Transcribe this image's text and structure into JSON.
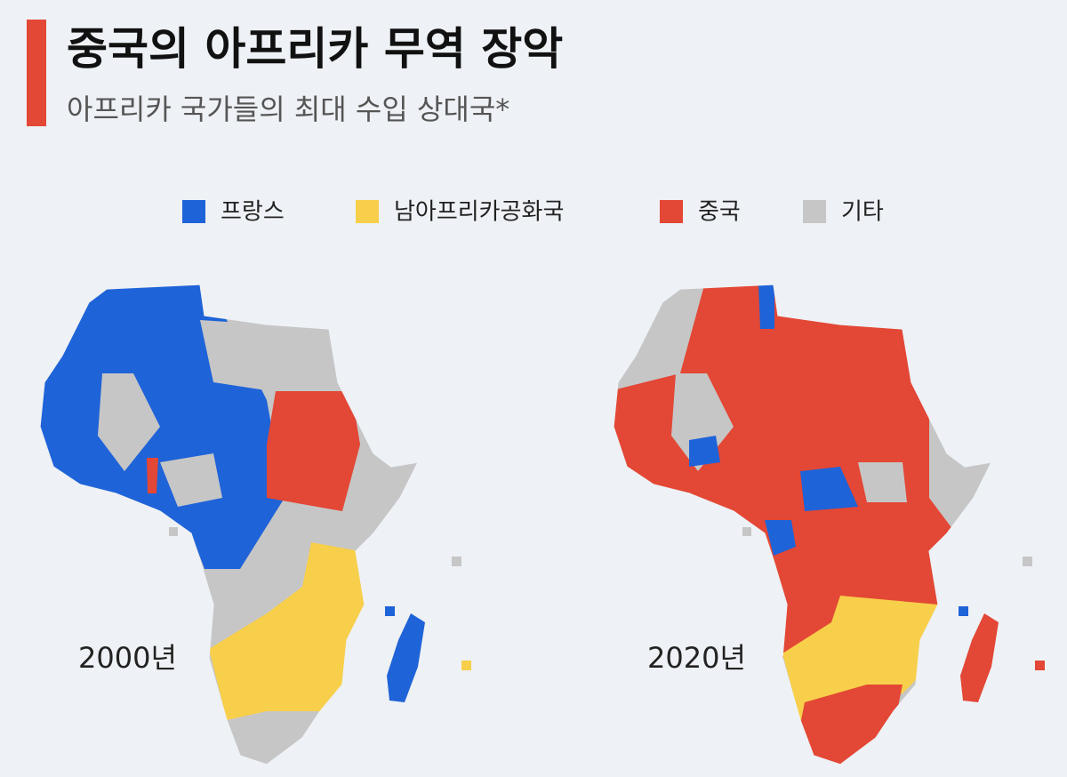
{
  "header": {
    "title": "중국의 아프리카 무역 장악",
    "subtitle": "아프리카 국가들의 최대 수입 상대국*"
  },
  "legend": [
    {
      "label": "프랑스"
    },
    {
      "label": "남아프리카공화국"
    },
    {
      "label": "중국"
    },
    {
      "label": "기타"
    }
  ],
  "maps": [
    {
      "label": "2000년"
    },
    {
      "label": "2020년"
    }
  ]
}
